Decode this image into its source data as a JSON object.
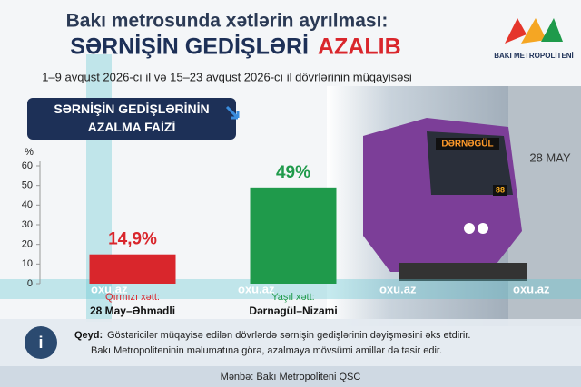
{
  "chart_data": {
    "type": "bar",
    "title": "Bakı metrosunda xətlərin ayrılması:",
    "title_highlight": "SƏRNİŞİN GEDİŞLƏRİ",
    "title_accent": "AZALIB",
    "subtitle": "1–9 avqust 2026-cı il və 15–23 avqust 2026-cı il dövrlərinin müqayisəsi",
    "chart_heading": "SƏRNİŞİN GEDİŞLƏRİNİN AZALMA FAİZİ",
    "y_unit": "%",
    "categories": [
      "Qırmızı xətt:",
      "Yaşıl xətt:"
    ],
    "category_routes": [
      "28 May–Əhmədli",
      "Dərnəgül–Nizami"
    ],
    "values": [
      14.9,
      49
    ],
    "value_labels": [
      "14,9%",
      "49%"
    ],
    "colors": [
      "#d9262c",
      "#1f9a4b"
    ],
    "ylim": [
      0,
      60
    ],
    "yticks": [
      0,
      10,
      20,
      30,
      40,
      50,
      60
    ],
    "grid": false
  },
  "logo": "BAKI METROPOLİTENİ",
  "photo": {
    "train_sign": "DƏRNƏGÜL",
    "train_number": "88",
    "station_sign": "28 MAY"
  },
  "watermark": "oxu.az",
  "note": {
    "label": "Qeyd:",
    "lines": [
      "Göstəricilər müqayisə edilən dövrlərdə sərnişin gedişlərinin dəyişməsini əks etdirir.",
      "Bakı Metropoliteninin məlumatına görə, azalmaya mövsümi amillər də təsir edir."
    ]
  },
  "source": "Mənbə: Bakı Metropoliteni QSC"
}
